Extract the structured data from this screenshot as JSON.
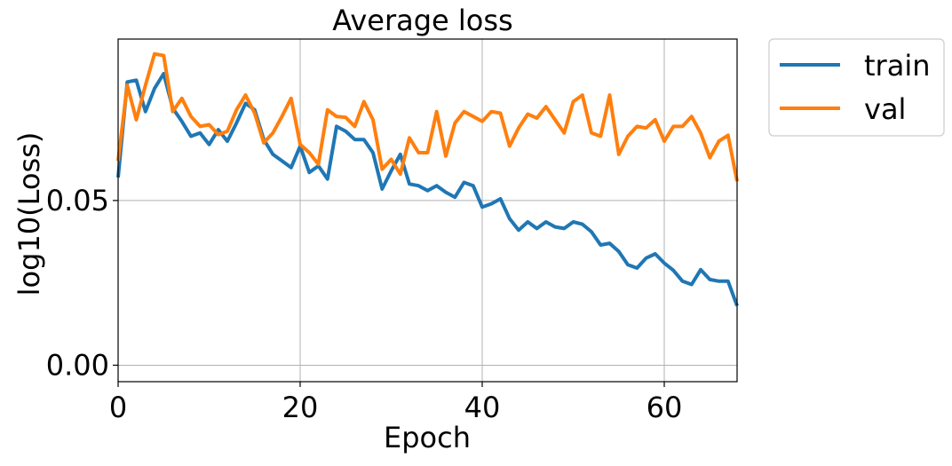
{
  "chart_data": {
    "type": "line",
    "title": "Average loss",
    "xlabel": "Epoch",
    "ylabel": "log10(Loss)",
    "xlim": [
      0,
      68
    ],
    "ylim": [
      -0.005,
      0.099
    ],
    "xticks": [
      0,
      20,
      40,
      60
    ],
    "xtick_labels": [
      "0",
      "20",
      "40",
      "60"
    ],
    "yticks": [
      0.0,
      0.05
    ],
    "ytick_labels": [
      "0.00",
      "0.05"
    ],
    "grid": true,
    "legend_position": "outside-top-right",
    "series": [
      {
        "name": "train",
        "color": "#1f77b4",
        "x": [
          0,
          1,
          2,
          3,
          4,
          5,
          6,
          7,
          8,
          9,
          10,
          11,
          12,
          13,
          14,
          15,
          16,
          17,
          18,
          19,
          20,
          21,
          22,
          23,
          24,
          25,
          26,
          27,
          28,
          29,
          30,
          31,
          32,
          33,
          34,
          35,
          36,
          37,
          38,
          39,
          40,
          41,
          42,
          43,
          44,
          45,
          46,
          47,
          48,
          49,
          50,
          51,
          52,
          53,
          54,
          55,
          56,
          57,
          58,
          59,
          60,
          61,
          62,
          63,
          64,
          65,
          66,
          67,
          68
        ],
        "y": [
          0.057,
          0.086,
          0.0865,
          0.077,
          0.084,
          0.0885,
          0.078,
          0.074,
          0.0695,
          0.0705,
          0.067,
          0.0715,
          0.068,
          0.0735,
          0.0795,
          0.0775,
          0.0685,
          0.064,
          0.062,
          0.06,
          0.0665,
          0.0585,
          0.0605,
          0.0565,
          0.0725,
          0.071,
          0.0685,
          0.0685,
          0.0645,
          0.0535,
          0.059,
          0.064,
          0.055,
          0.0545,
          0.053,
          0.0545,
          0.0525,
          0.051,
          0.0555,
          0.0545,
          0.048,
          0.049,
          0.0505,
          0.0445,
          0.041,
          0.0435,
          0.0415,
          0.0435,
          0.042,
          0.0415,
          0.0435,
          0.0428,
          0.0405,
          0.0365,
          0.037,
          0.0345,
          0.0305,
          0.0295,
          0.0325,
          0.0338,
          0.031,
          0.0288,
          0.0255,
          0.0245,
          0.029,
          0.026,
          0.0255,
          0.0255,
          0.018
        ]
      },
      {
        "name": "val",
        "color": "#ff7f0e",
        "x": [
          0,
          1,
          2,
          3,
          4,
          5,
          6,
          7,
          8,
          9,
          10,
          11,
          12,
          13,
          14,
          15,
          16,
          17,
          18,
          19,
          20,
          21,
          22,
          23,
          24,
          25,
          26,
          27,
          28,
          29,
          30,
          31,
          32,
          33,
          34,
          35,
          36,
          37,
          38,
          39,
          40,
          41,
          42,
          43,
          44,
          45,
          46,
          47,
          48,
          49,
          50,
          51,
          52,
          53,
          54,
          55,
          56,
          57,
          58,
          59,
          60,
          61,
          62,
          63,
          64,
          65,
          66,
          67,
          68
        ],
        "y": [
          0.062,
          0.085,
          0.0745,
          0.085,
          0.0945,
          0.094,
          0.077,
          0.081,
          0.0755,
          0.0725,
          0.073,
          0.07,
          0.071,
          0.0775,
          0.082,
          0.0765,
          0.0675,
          0.0705,
          0.0755,
          0.081,
          0.067,
          0.0645,
          0.061,
          0.0775,
          0.0755,
          0.0752,
          0.0725,
          0.08,
          0.0745,
          0.0595,
          0.0625,
          0.058,
          0.069,
          0.0645,
          0.0645,
          0.077,
          0.0635,
          0.0735,
          0.077,
          0.0755,
          0.074,
          0.077,
          0.0765,
          0.0665,
          0.072,
          0.0762,
          0.075,
          0.0785,
          0.0745,
          0.0705,
          0.08,
          0.082,
          0.0705,
          0.0695,
          0.082,
          0.064,
          0.0695,
          0.0725,
          0.072,
          0.0745,
          0.068,
          0.0725,
          0.0725,
          0.0755,
          0.0705,
          0.063,
          0.068,
          0.0698,
          0.0558
        ]
      }
    ]
  }
}
